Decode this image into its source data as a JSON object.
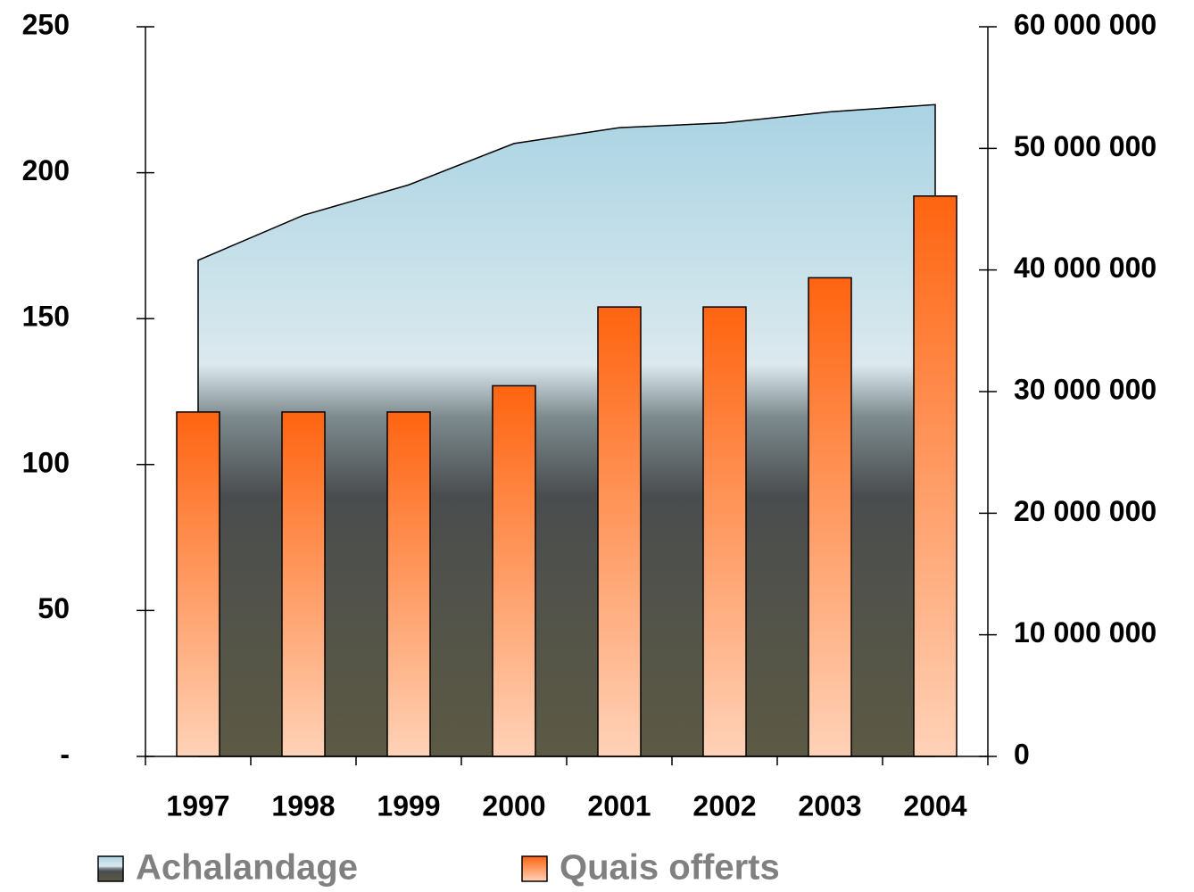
{
  "chart_data": {
    "type": "bar-area",
    "categories": [
      "1997",
      "1998",
      "1999",
      "2000",
      "2001",
      "2002",
      "2003",
      "2004"
    ],
    "series": [
      {
        "name": "Achalandage",
        "type": "area",
        "axis": "y2",
        "color": "#a9d3e3",
        "values": [
          40800000,
          44500000,
          47000000,
          50400000,
          51700000,
          52100000,
          53000000,
          53600000
        ]
      },
      {
        "name": "Quais offerts",
        "type": "bar",
        "axis": "y",
        "color": "#ff6410",
        "values": [
          118,
          118,
          118,
          127,
          154,
          154,
          164,
          192
        ]
      }
    ],
    "ylim": [
      0,
      250
    ],
    "yticks": [
      {
        "value": 0,
        "label": "-"
      },
      50,
      100,
      150,
      200,
      250
    ],
    "y2lim": [
      0,
      60000000
    ],
    "y2ticks": [
      0,
      {
        "value": 10000000,
        "label": "10 000 000"
      },
      {
        "value": 20000000,
        "label": "20 000 000"
      },
      {
        "value": 30000000,
        "label": "30 000 000"
      },
      {
        "value": 40000000,
        "label": "40 000 000"
      },
      {
        "value": 50000000,
        "label": "50 000 000"
      },
      {
        "value": 60000000,
        "label": "60 000 000"
      }
    ],
    "grid": false
  }
}
